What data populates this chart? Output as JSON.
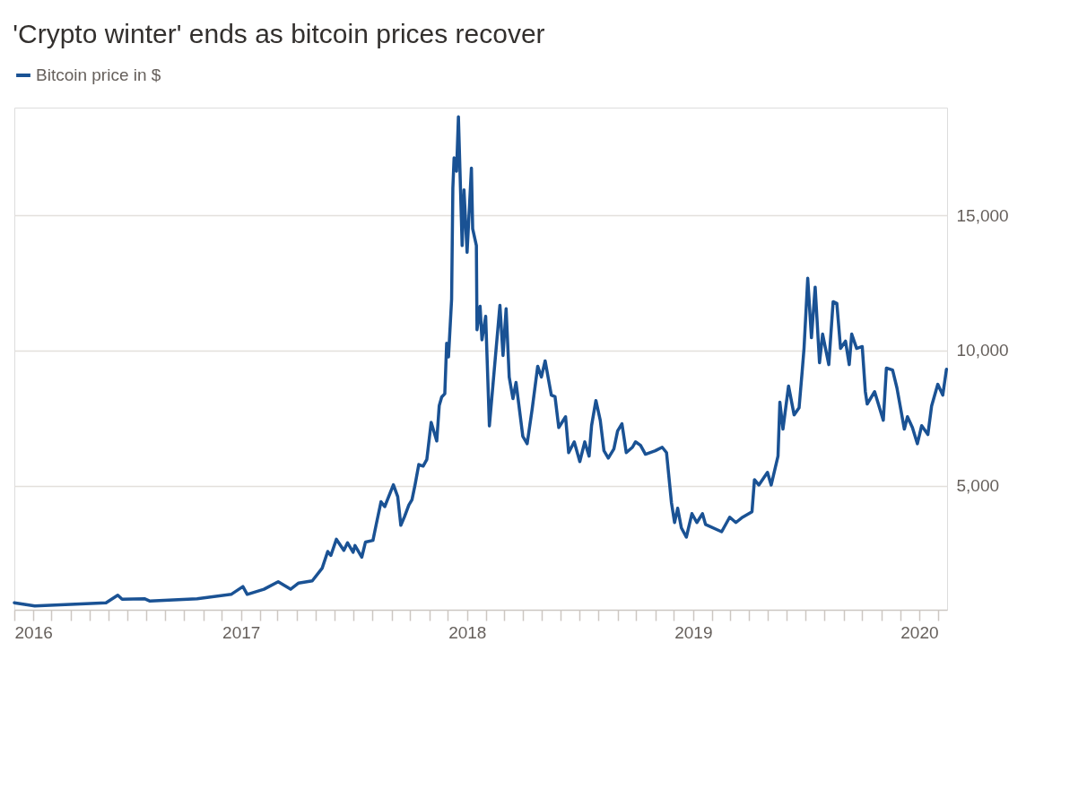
{
  "chart_data": {
    "type": "line",
    "title": "'Crypto winter' ends as bitcoin prices recover",
    "legend": "top left",
    "grid": "y",
    "line_style": "solid",
    "marker": "none",
    "xlim": [
      "2016-01-01",
      "2020-02-15"
    ],
    "ylim": [
      400,
      19000
    ],
    "yticks": [
      {
        "value": 5000,
        "label": "5,000"
      },
      {
        "value": 10000,
        "label": "10,000"
      },
      {
        "value": 15000,
        "label": "15,000"
      }
    ],
    "xticks": [
      {
        "value": "2016-01-01",
        "label": "2016"
      },
      {
        "value": "2016-02-01",
        "label": null
      },
      {
        "value": "2016-03-01",
        "label": null
      },
      {
        "value": "2016-04-01",
        "label": null
      },
      {
        "value": "2016-05-01",
        "label": null
      },
      {
        "value": "2016-06-01",
        "label": null
      },
      {
        "value": "2016-07-01",
        "label": null
      },
      {
        "value": "2016-08-01",
        "label": null
      },
      {
        "value": "2016-09-01",
        "label": null
      },
      {
        "value": "2016-10-01",
        "label": null
      },
      {
        "value": "2016-11-01",
        "label": null
      },
      {
        "value": "2016-12-01",
        "label": null
      },
      {
        "value": "2017-01-01",
        "label": "2017"
      },
      {
        "value": "2017-02-01",
        "label": null
      },
      {
        "value": "2017-03-01",
        "label": null
      },
      {
        "value": "2017-04-01",
        "label": null
      },
      {
        "value": "2017-05-01",
        "label": null
      },
      {
        "value": "2017-06-01",
        "label": null
      },
      {
        "value": "2017-07-01",
        "label": null
      },
      {
        "value": "2017-08-01",
        "label": null
      },
      {
        "value": "2017-09-01",
        "label": null
      },
      {
        "value": "2017-10-01",
        "label": null
      },
      {
        "value": "2017-11-01",
        "label": null
      },
      {
        "value": "2017-12-01",
        "label": null
      },
      {
        "value": "2018-01-01",
        "label": "2018"
      },
      {
        "value": "2018-02-01",
        "label": null
      },
      {
        "value": "2018-03-01",
        "label": null
      },
      {
        "value": "2018-04-01",
        "label": null
      },
      {
        "value": "2018-05-01",
        "label": null
      },
      {
        "value": "2018-06-01",
        "label": null
      },
      {
        "value": "2018-07-01",
        "label": null
      },
      {
        "value": "2018-08-01",
        "label": null
      },
      {
        "value": "2018-09-01",
        "label": null
      },
      {
        "value": "2018-10-01",
        "label": null
      },
      {
        "value": "2018-11-01",
        "label": null
      },
      {
        "value": "2018-12-01",
        "label": null
      },
      {
        "value": "2019-01-01",
        "label": "2019"
      },
      {
        "value": "2019-02-01",
        "label": null
      },
      {
        "value": "2019-03-01",
        "label": null
      },
      {
        "value": "2019-04-01",
        "label": null
      },
      {
        "value": "2019-05-01",
        "label": null
      },
      {
        "value": "2019-06-01",
        "label": null
      },
      {
        "value": "2019-07-01",
        "label": null
      },
      {
        "value": "2019-08-01",
        "label": null
      },
      {
        "value": "2019-09-01",
        "label": null
      },
      {
        "value": "2019-10-01",
        "label": null
      },
      {
        "value": "2019-11-01",
        "label": null
      },
      {
        "value": "2019-12-01",
        "label": null
      },
      {
        "value": "2020-01-01",
        "label": "2020"
      },
      {
        "value": "2020-02-01",
        "label": null
      }
    ],
    "x": [
      "2016-01-01",
      "2016-02-03",
      "2016-05-28",
      "2016-06-16",
      "2016-06-23",
      "2016-07-29",
      "2016-08-07",
      "2016-10-22",
      "2016-12-16",
      "2017-01-04",
      "2017-01-11",
      "2017-02-07",
      "2017-03-02",
      "2017-03-22",
      "2017-04-04",
      "2017-04-26",
      "2017-05-12",
      "2017-05-21",
      "2017-05-26",
      "2017-06-04",
      "2017-06-16",
      "2017-06-22",
      "2017-07-01",
      "2017-07-04",
      "2017-07-15",
      "2017-07-21",
      "2017-08-02",
      "2017-08-07",
      "2017-08-15",
      "2017-08-21",
      "2017-09-04",
      "2017-09-11",
      "2017-09-16",
      "2017-09-22",
      "2017-09-29",
      "2017-10-04",
      "2017-10-09",
      "2017-10-15",
      "2017-10-22",
      "2017-10-28",
      "2017-11-04",
      "2017-11-13",
      "2017-11-17",
      "2017-11-21",
      "2017-11-26",
      "2017-11-29",
      "2017-12-02",
      "2017-12-07",
      "2017-12-09",
      "2017-12-11",
      "2017-12-15",
      "2017-12-18",
      "2017-12-24",
      "2017-12-27",
      "2018-01-01",
      "2018-01-08",
      "2018-01-10",
      "2018-01-16",
      "2018-01-17",
      "2018-01-22",
      "2018-01-25",
      "2018-01-31",
      "2018-02-06",
      "2018-02-23",
      "2018-02-28",
      "2018-03-05",
      "2018-03-10",
      "2018-03-16",
      "2018-03-21",
      "2018-04-01",
      "2018-04-08",
      "2018-04-16",
      "2018-04-25",
      "2018-05-01",
      "2018-05-07",
      "2018-05-17",
      "2018-05-23",
      "2018-05-29",
      "2018-06-09",
      "2018-06-14",
      "2018-06-23",
      "2018-07-02",
      "2018-07-10",
      "2018-07-17",
      "2018-07-21",
      "2018-07-28",
      "2018-08-04",
      "2018-08-10",
      "2018-08-17",
      "2018-08-26",
      "2018-09-01",
      "2018-09-08",
      "2018-09-15",
      "2018-09-25",
      "2018-09-30",
      "2018-10-08",
      "2018-10-16",
      "2018-11-01",
      "2018-11-12",
      "2018-11-19",
      "2018-11-23",
      "2018-11-27",
      "2018-12-02",
      "2018-12-07",
      "2018-12-13",
      "2018-12-21",
      "2018-12-30",
      "2019-01-07",
      "2019-01-16",
      "2019-01-21",
      "2019-02-16",
      "2019-03-01",
      "2019-03-11",
      "2019-03-22",
      "2019-04-06",
      "2019-04-10",
      "2019-04-17",
      "2019-05-01",
      "2019-05-07",
      "2019-05-18",
      "2019-05-21",
      "2019-05-26",
      "2019-06-04",
      "2019-06-13",
      "2019-06-21",
      "2019-06-26",
      "2019-06-29",
      "2019-07-05",
      "2019-07-11",
      "2019-07-17",
      "2019-07-24",
      "2019-07-29",
      "2019-08-08",
      "2019-08-15",
      "2019-08-21",
      "2019-08-27",
      "2019-09-04",
      "2019-09-10",
      "2019-09-14",
      "2019-09-22",
      "2019-10-01",
      "2019-10-06",
      "2019-10-09",
      "2019-10-21",
      "2019-11-04",
      "2019-11-09",
      "2019-11-19",
      "2019-11-26",
      "2019-12-08",
      "2019-12-13",
      "2019-12-21",
      "2019-12-29",
      "2020-01-05",
      "2020-01-15",
      "2020-01-21",
      "2020-01-31",
      "2020-02-08",
      "2020-02-14"
    ],
    "series": [
      {
        "name": "Bitcoin price in $",
        "color": "#1a5294",
        "values": [
          660,
          540,
          660,
          940,
          790,
          810,
          720,
          810,
          970,
          1260,
          970,
          1160,
          1440,
          1160,
          1390,
          1470,
          1940,
          2560,
          2410,
          3010,
          2600,
          2880,
          2530,
          2780,
          2350,
          2910,
          2970,
          3530,
          4400,
          4220,
          5030,
          4590,
          3530,
          3850,
          4280,
          4470,
          5030,
          5780,
          5720,
          5970,
          7340,
          6650,
          7960,
          8280,
          8400,
          10270,
          9770,
          11900,
          16010,
          17140,
          16640,
          18660,
          13890,
          15950,
          13640,
          16760,
          14510,
          13890,
          10770,
          11640,
          10400,
          11270,
          7210,
          11680,
          9820,
          11550,
          9020,
          8220,
          8820,
          6820,
          6550,
          7820,
          9420,
          9020,
          9620,
          8350,
          8290,
          7150,
          7550,
          6220,
          6620,
          5890,
          6620,
          6090,
          7220,
          8150,
          7420,
          6290,
          6020,
          6360,
          7020,
          7290,
          6220,
          6420,
          6620,
          6490,
          6160,
          6290,
          6420,
          6220,
          5290,
          4360,
          3630,
          4160,
          3430,
          3090,
          3960,
          3630,
          3960,
          3560,
          3290,
          3830,
          3630,
          3830,
          4030,
          5220,
          5020,
          5490,
          5020,
          6090,
          8090,
          7090,
          8690,
          7620,
          7880,
          9220,
          10080,
          12680,
          10480,
          12350,
          9550,
          10610,
          9480,
          11810,
          11750,
          10080,
          10350,
          9480,
          10610,
          10080,
          10150,
          8480,
          8020,
          8480,
          7420,
          9350,
          9280,
          8620,
          7090,
          7550,
          7150,
          6550,
          7220,
          6890,
          7950,
          8750,
          8350,
          9310
        ]
      }
    ]
  }
}
